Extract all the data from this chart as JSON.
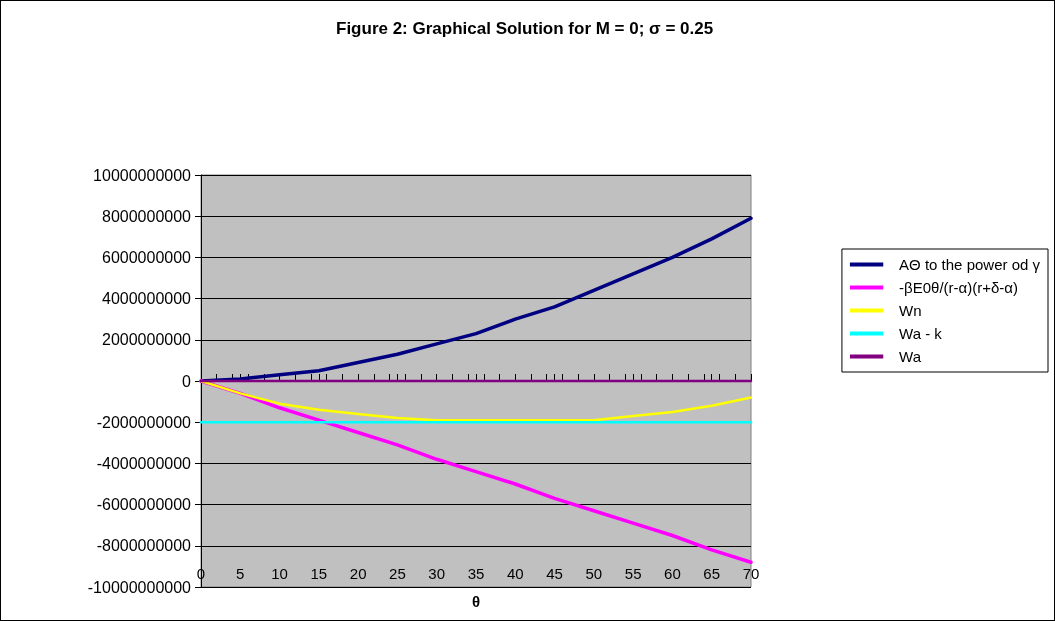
{
  "chart_data": {
    "type": "line",
    "title": "Figure 2: Graphical Solution for M = 0; σ = 0.25",
    "xlabel": "θ",
    "x": [
      0,
      5,
      10,
      15,
      20,
      25,
      30,
      35,
      40,
      45,
      50,
      55,
      60,
      65,
      70
    ],
    "series": [
      {
        "name": "AΘ to the power od γ",
        "color": "#000080",
        "values": [
          0,
          100000000,
          300000000,
          500000000,
          900000000,
          1300000000,
          1800000000,
          2300000000,
          3000000000,
          3600000000,
          4400000000,
          5200000000,
          6000000000,
          6900000000,
          7900000000
        ]
      },
      {
        "name": "-βE0θ/(r-α)(r+δ-α)",
        "color": "#ff00ff",
        "values": [
          0,
          -600000000,
          -1300000000,
          -1900000000,
          -2500000000,
          -3100000000,
          -3800000000,
          -4400000000,
          -5000000000,
          -5700000000,
          -6300000000,
          -6900000000,
          -7500000000,
          -8200000000,
          -8800000000
        ]
      },
      {
        "name": "Wn",
        "color": "#ffff00",
        "values": [
          0,
          -600000000,
          -1100000000,
          -1400000000,
          -1600000000,
          -1800000000,
          -1900000000,
          -1900000000,
          -1900000000,
          -1900000000,
          -1900000000,
          -1700000000,
          -1500000000,
          -1200000000,
          -800000000
        ]
      },
      {
        "name": "Wa - k",
        "color": "#00ffff",
        "values": [
          -2000000000,
          -2000000000,
          -2000000000,
          -2000000000,
          -2000000000,
          -2000000000,
          -2000000000,
          -2000000000,
          -2000000000,
          -2000000000,
          -2000000000,
          -2000000000,
          -2000000000,
          -2000000000,
          -2000000000
        ]
      },
      {
        "name": "Wa",
        "color": "#800080",
        "values": [
          0,
          0,
          0,
          0,
          0,
          0,
          0,
          0,
          0,
          0,
          0,
          0,
          0,
          0,
          0
        ]
      }
    ],
    "xlim": [
      0,
      70
    ],
    "xticks": [
      0,
      5,
      10,
      15,
      20,
      25,
      30,
      35,
      40,
      45,
      50,
      55,
      60,
      65,
      70
    ],
    "ylim": [
      -10000000000,
      10000000000
    ],
    "yticks": [
      -10000000000,
      -8000000000,
      -6000000000,
      -4000000000,
      -2000000000,
      0,
      2000000000,
      4000000000,
      6000000000,
      8000000000,
      10000000000
    ],
    "grid": "y",
    "legend": "right",
    "marker": "none",
    "line_style": "solid"
  }
}
